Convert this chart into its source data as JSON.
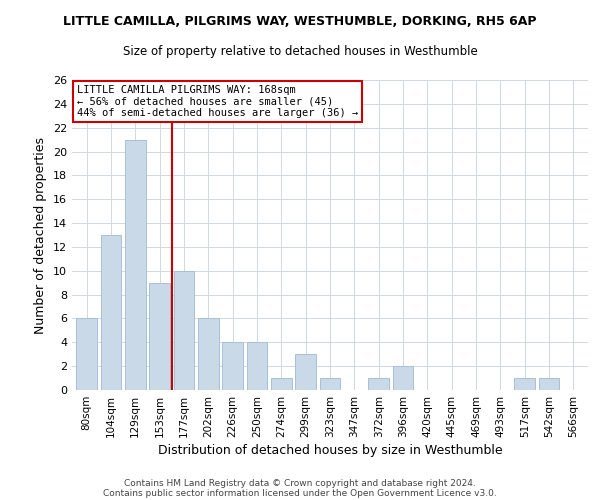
{
  "title": "LITTLE CAMILLA, PILGRIMS WAY, WESTHUMBLE, DORKING, RH5 6AP",
  "subtitle": "Size of property relative to detached houses in Westhumble",
  "xlabel": "Distribution of detached houses by size in Westhumble",
  "ylabel": "Number of detached properties",
  "bar_labels": [
    "80sqm",
    "104sqm",
    "129sqm",
    "153sqm",
    "177sqm",
    "202sqm",
    "226sqm",
    "250sqm",
    "274sqm",
    "299sqm",
    "323sqm",
    "347sqm",
    "372sqm",
    "396sqm",
    "420sqm",
    "445sqm",
    "469sqm",
    "493sqm",
    "517sqm",
    "542sqm",
    "566sqm"
  ],
  "bar_values": [
    6,
    13,
    21,
    9,
    10,
    6,
    4,
    4,
    1,
    3,
    1,
    0,
    1,
    2,
    0,
    0,
    0,
    0,
    1,
    1,
    0
  ],
  "bar_color": "#c9d9e8",
  "bar_edgecolor": "#a8c0d6",
  "vline_color": "#cc0000",
  "ylim": [
    0,
    26
  ],
  "yticks": [
    0,
    2,
    4,
    6,
    8,
    10,
    12,
    14,
    16,
    18,
    20,
    22,
    24,
    26
  ],
  "annotation_text": "LITTLE CAMILLA PILGRIMS WAY: 168sqm\n← 56% of detached houses are smaller (45)\n44% of semi-detached houses are larger (36) →",
  "annotation_box_edgecolor": "#cc0000",
  "footer_line1": "Contains HM Land Registry data © Crown copyright and database right 2024.",
  "footer_line2": "Contains public sector information licensed under the Open Government Licence v3.0.",
  "background_color": "#ffffff",
  "grid_color": "#d0d8e0"
}
